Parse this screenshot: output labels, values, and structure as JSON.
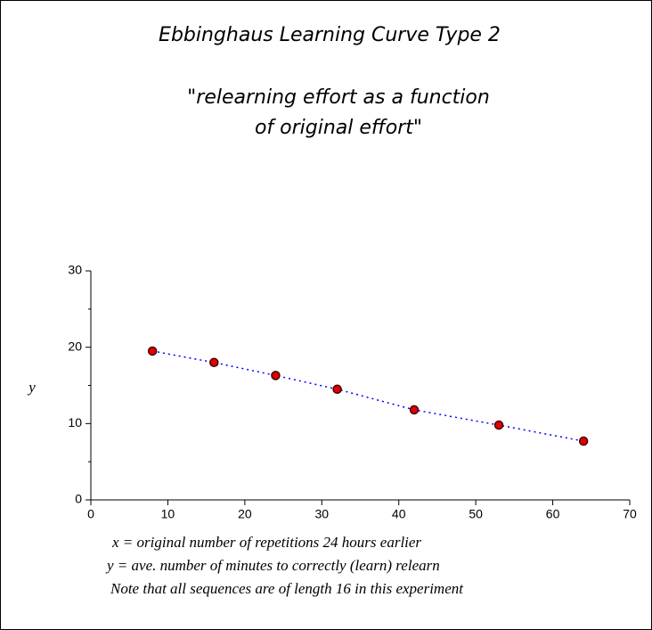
{
  "chart_data": {
    "type": "scatter",
    "title": "Ebbinghaus Learning Curve Type 2",
    "subtitle": [
      "\"relearning effort as a function",
      "of original effort\""
    ],
    "y_label": "y",
    "notes": [
      "x = original number of repetitions 24 hours earlier",
      "y = ave. number of minutes to correctly (learn) relearn",
      "Note that all sequences are of length 16 in this experiment"
    ],
    "x": [
      8,
      16,
      24,
      32,
      42,
      53,
      64
    ],
    "series": [
      {
        "values": [
          19.5,
          18.0,
          16.3,
          14.5,
          11.8,
          9.8,
          7.7
        ],
        "marker_color": "#e00000",
        "line_color": "#0000ff"
      }
    ],
    "xlim": [
      0,
      70
    ],
    "xticks": [
      0,
      10,
      20,
      30,
      40,
      50,
      60,
      70
    ],
    "ylim": [
      0,
      30
    ],
    "yticks": [
      0,
      10,
      20,
      30
    ],
    "yminorticks": [
      5,
      15,
      25
    ]
  }
}
